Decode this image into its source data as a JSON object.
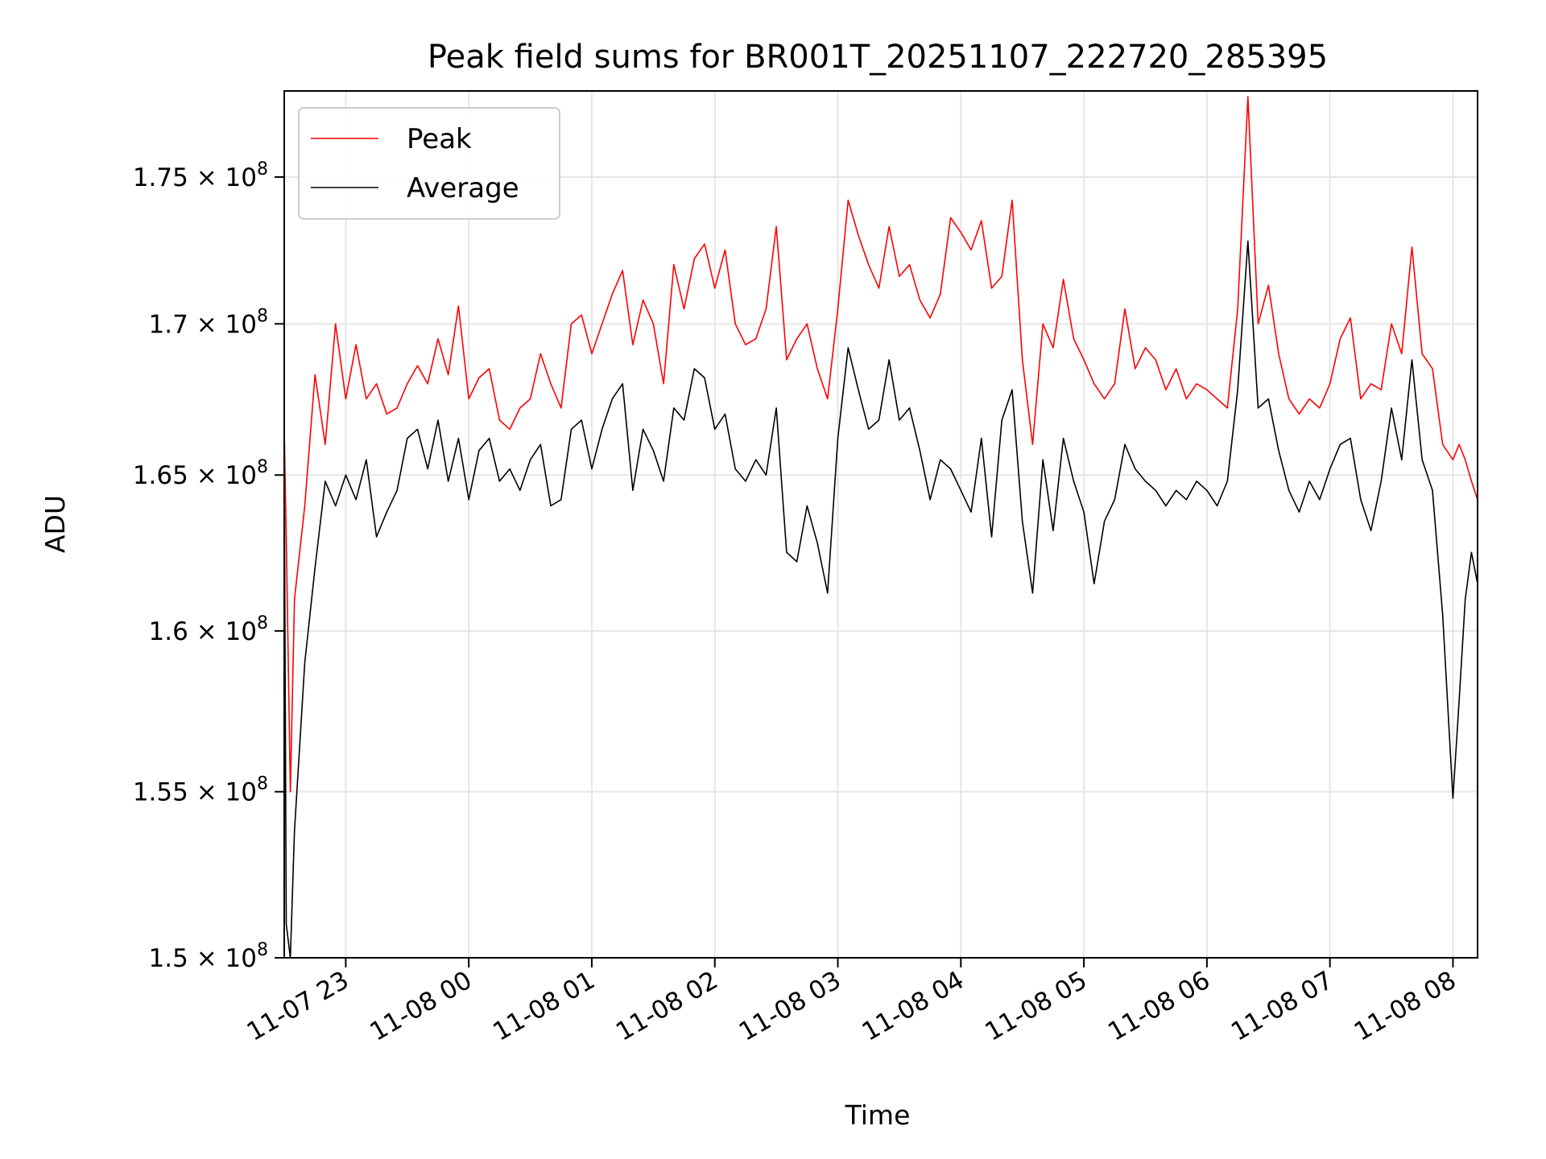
{
  "chart_data": {
    "type": "line",
    "title": "Peak field sums for BR001T_20251107_222720_285395",
    "xlabel": "Time",
    "ylabel": "ADU",
    "xlim": [
      "2025-11-07 22:30",
      "2025-11-08 08:12"
    ],
    "ylim": [
      150000000.0,
      178000000.0
    ],
    "y_scale": "log",
    "grid": true,
    "legend_position": "top-left",
    "x_ticks": [
      {
        "value": "2025-11-07 23:00",
        "label": "11-07 23"
      },
      {
        "value": "2025-11-08 00:00",
        "label": "11-08 00"
      },
      {
        "value": "2025-11-08 01:00",
        "label": "11-08 01"
      },
      {
        "value": "2025-11-08 02:00",
        "label": "11-08 02"
      },
      {
        "value": "2025-11-08 03:00",
        "label": "11-08 03"
      },
      {
        "value": "2025-11-08 04:00",
        "label": "11-08 04"
      },
      {
        "value": "2025-11-08 05:00",
        "label": "11-08 05"
      },
      {
        "value": "2025-11-08 06:00",
        "label": "11-08 06"
      },
      {
        "value": "2025-11-08 07:00",
        "label": "11-08 07"
      },
      {
        "value": "2025-11-08 08:00",
        "label": "11-08 08"
      }
    ],
    "y_ticks": [
      {
        "value": 150000000.0,
        "mantissa": "1.5",
        "exp": "8"
      },
      {
        "value": 155000000.0,
        "mantissa": "1.55",
        "exp": "8"
      },
      {
        "value": 160000000.0,
        "mantissa": "1.6",
        "exp": "8"
      },
      {
        "value": 165000000.0,
        "mantissa": "1.65",
        "exp": "8"
      },
      {
        "value": 170000000.0,
        "mantissa": "1.7",
        "exp": "8"
      },
      {
        "value": 175000000.0,
        "mantissa": "1.75",
        "exp": "8"
      }
    ],
    "series": [
      {
        "name": "Peak",
        "color": "#ff0000",
        "x": [
          "2025-11-07 22:30",
          "2025-11-07 22:31",
          "2025-11-07 22:33",
          "2025-11-07 22:35",
          "2025-11-07 22:40",
          "2025-11-07 22:45",
          "2025-11-07 22:50",
          "2025-11-07 22:55",
          "2025-11-07 23:00",
          "2025-11-07 23:05",
          "2025-11-07 23:10",
          "2025-11-07 23:15",
          "2025-11-07 23:20",
          "2025-11-07 23:25",
          "2025-11-07 23:30",
          "2025-11-07 23:35",
          "2025-11-07 23:40",
          "2025-11-07 23:45",
          "2025-11-07 23:50",
          "2025-11-07 23:55",
          "2025-11-08 00:00",
          "2025-11-08 00:05",
          "2025-11-08 00:10",
          "2025-11-08 00:15",
          "2025-11-08 00:20",
          "2025-11-08 00:25",
          "2025-11-08 00:30",
          "2025-11-08 00:35",
          "2025-11-08 00:40",
          "2025-11-08 00:45",
          "2025-11-08 00:50",
          "2025-11-08 00:55",
          "2025-11-08 01:00",
          "2025-11-08 01:05",
          "2025-11-08 01:10",
          "2025-11-08 01:15",
          "2025-11-08 01:20",
          "2025-11-08 01:25",
          "2025-11-08 01:30",
          "2025-11-08 01:35",
          "2025-11-08 01:40",
          "2025-11-08 01:45",
          "2025-11-08 01:50",
          "2025-11-08 01:55",
          "2025-11-08 02:00",
          "2025-11-08 02:05",
          "2025-11-08 02:10",
          "2025-11-08 02:15",
          "2025-11-08 02:20",
          "2025-11-08 02:25",
          "2025-11-08 02:30",
          "2025-11-08 02:35",
          "2025-11-08 02:40",
          "2025-11-08 02:45",
          "2025-11-08 02:50",
          "2025-11-08 02:55",
          "2025-11-08 03:00",
          "2025-11-08 03:05",
          "2025-11-08 03:10",
          "2025-11-08 03:15",
          "2025-11-08 03:20",
          "2025-11-08 03:25",
          "2025-11-08 03:30",
          "2025-11-08 03:35",
          "2025-11-08 03:40",
          "2025-11-08 03:45",
          "2025-11-08 03:50",
          "2025-11-08 03:55",
          "2025-11-08 04:00",
          "2025-11-08 04:05",
          "2025-11-08 04:10",
          "2025-11-08 04:15",
          "2025-11-08 04:20",
          "2025-11-08 04:25",
          "2025-11-08 04:30",
          "2025-11-08 04:35",
          "2025-11-08 04:40",
          "2025-11-08 04:45",
          "2025-11-08 04:50",
          "2025-11-08 04:55",
          "2025-11-08 05:00",
          "2025-11-08 05:05",
          "2025-11-08 05:10",
          "2025-11-08 05:15",
          "2025-11-08 05:20",
          "2025-11-08 05:25",
          "2025-11-08 05:30",
          "2025-11-08 05:35",
          "2025-11-08 05:40",
          "2025-11-08 05:45",
          "2025-11-08 05:50",
          "2025-11-08 05:55",
          "2025-11-08 06:00",
          "2025-11-08 06:05",
          "2025-11-08 06:10",
          "2025-11-08 06:15",
          "2025-11-08 06:20",
          "2025-11-08 06:25",
          "2025-11-08 06:30",
          "2025-11-08 06:35",
          "2025-11-08 06:40",
          "2025-11-08 06:45",
          "2025-11-08 06:50",
          "2025-11-08 06:55",
          "2025-11-08 07:00",
          "2025-11-08 07:05",
          "2025-11-08 07:10",
          "2025-11-08 07:15",
          "2025-11-08 07:20",
          "2025-11-08 07:25",
          "2025-11-08 07:30",
          "2025-11-08 07:35",
          "2025-11-08 07:40",
          "2025-11-08 07:45",
          "2025-11-08 07:50",
          "2025-11-08 07:55",
          "2025-11-08 08:00",
          "2025-11-08 08:03",
          "2025-11-08 08:06",
          "2025-11-08 08:09",
          "2025-11-08 08:12"
        ],
        "values": [
          166500000.0,
          163000000.0,
          155000000.0,
          161000000.0,
          164000000.0,
          168300000.0,
          166000000.0,
          170000000.0,
          167500000.0,
          169300000.0,
          167500000.0,
          168000000.0,
          167000000.0,
          167200000.0,
          168000000.0,
          168600000.0,
          168000000.0,
          169500000.0,
          168300000.0,
          170600000.0,
          167500000.0,
          168200000.0,
          168500000.0,
          166800000.0,
          166500000.0,
          167200000.0,
          167500000.0,
          169000000.0,
          168000000.0,
          167200000.0,
          170000000.0,
          170300000.0,
          169000000.0,
          170000000.0,
          171000000.0,
          171800000.0,
          169300000.0,
          170800000.0,
          170000000.0,
          168000000.0,
          172000000.0,
          170500000.0,
          172200000.0,
          172700000.0,
          171200000.0,
          172500000.0,
          170000000.0,
          169300000.0,
          169500000.0,
          170500000.0,
          173300000.0,
          168800000.0,
          169500000.0,
          170000000.0,
          168500000.0,
          167500000.0,
          170500000.0,
          174200000.0,
          173000000.0,
          172000000.0,
          171200000.0,
          173300000.0,
          171600000.0,
          172000000.0,
          170800000.0,
          170200000.0,
          171000000.0,
          173600000.0,
          173100000.0,
          172500000.0,
          173500000.0,
          171200000.0,
          171600000.0,
          174200000.0,
          168800000.0,
          166000000.0,
          170000000.0,
          169200000.0,
          171500000.0,
          169500000.0,
          168800000.0,
          168000000.0,
          167500000.0,
          168000000.0,
          170500000.0,
          168500000.0,
          169200000.0,
          168800000.0,
          167800000.0,
          168500000.0,
          167500000.0,
          168000000.0,
          167800000.0,
          167500000.0,
          167200000.0,
          170500000.0,
          177800000.0,
          170000000.0,
          171300000.0,
          169000000.0,
          167500000.0,
          167000000.0,
          167500000.0,
          167200000.0,
          168000000.0,
          169500000.0,
          170200000.0,
          167500000.0,
          168000000.0,
          167800000.0,
          170000000.0,
          169000000.0,
          172600000.0,
          169000000.0,
          168500000.0,
          166000000.0,
          165500000.0,
          166000000.0,
          165500000.0,
          164800000.0,
          164200000.0
        ]
      },
      {
        "name": "Average",
        "color": "#000000",
        "x": [
          "2025-11-07 22:30",
          "2025-11-07 22:31",
          "2025-11-07 22:33",
          "2025-11-07 22:35",
          "2025-11-07 22:40",
          "2025-11-07 22:45",
          "2025-11-07 22:50",
          "2025-11-07 22:55",
          "2025-11-07 23:00",
          "2025-11-07 23:05",
          "2025-11-07 23:10",
          "2025-11-07 23:15",
          "2025-11-07 23:20",
          "2025-11-07 23:25",
          "2025-11-07 23:30",
          "2025-11-07 23:35",
          "2025-11-07 23:40",
          "2025-11-07 23:45",
          "2025-11-07 23:50",
          "2025-11-07 23:55",
          "2025-11-08 00:00",
          "2025-11-08 00:05",
          "2025-11-08 00:10",
          "2025-11-08 00:15",
          "2025-11-08 00:20",
          "2025-11-08 00:25",
          "2025-11-08 00:30",
          "2025-11-08 00:35",
          "2025-11-08 00:40",
          "2025-11-08 00:45",
          "2025-11-08 00:50",
          "2025-11-08 00:55",
          "2025-11-08 01:00",
          "2025-11-08 01:05",
          "2025-11-08 01:10",
          "2025-11-08 01:15",
          "2025-11-08 01:20",
          "2025-11-08 01:25",
          "2025-11-08 01:30",
          "2025-11-08 01:35",
          "2025-11-08 01:40",
          "2025-11-08 01:45",
          "2025-11-08 01:50",
          "2025-11-08 01:55",
          "2025-11-08 02:00",
          "2025-11-08 02:05",
          "2025-11-08 02:10",
          "2025-11-08 02:15",
          "2025-11-08 02:20",
          "2025-11-08 02:25",
          "2025-11-08 02:30",
          "2025-11-08 02:35",
          "2025-11-08 02:40",
          "2025-11-08 02:45",
          "2025-11-08 02:50",
          "2025-11-08 02:55",
          "2025-11-08 03:00",
          "2025-11-08 03:05",
          "2025-11-08 03:10",
          "2025-11-08 03:15",
          "2025-11-08 03:20",
          "2025-11-08 03:25",
          "2025-11-08 03:30",
          "2025-11-08 03:35",
          "2025-11-08 03:40",
          "2025-11-08 03:45",
          "2025-11-08 03:50",
          "2025-11-08 03:55",
          "2025-11-08 04:00",
          "2025-11-08 04:05",
          "2025-11-08 04:10",
          "2025-11-08 04:15",
          "2025-11-08 04:20",
          "2025-11-08 04:25",
          "2025-11-08 04:30",
          "2025-11-08 04:35",
          "2025-11-08 04:40",
          "2025-11-08 04:45",
          "2025-11-08 04:50",
          "2025-11-08 04:55",
          "2025-11-08 05:00",
          "2025-11-08 05:05",
          "2025-11-08 05:10",
          "2025-11-08 05:15",
          "2025-11-08 05:20",
          "2025-11-08 05:25",
          "2025-11-08 05:30",
          "2025-11-08 05:35",
          "2025-11-08 05:40",
          "2025-11-08 05:45",
          "2025-11-08 05:50",
          "2025-11-08 05:55",
          "2025-11-08 06:00",
          "2025-11-08 06:05",
          "2025-11-08 06:10",
          "2025-11-08 06:15",
          "2025-11-08 06:20",
          "2025-11-08 06:25",
          "2025-11-08 06:30",
          "2025-11-08 06:35",
          "2025-11-08 06:40",
          "2025-11-08 06:45",
          "2025-11-08 06:50",
          "2025-11-08 06:55",
          "2025-11-08 07:00",
          "2025-11-08 07:05",
          "2025-11-08 07:10",
          "2025-11-08 07:15",
          "2025-11-08 07:20",
          "2025-11-08 07:25",
          "2025-11-08 07:30",
          "2025-11-08 07:35",
          "2025-11-08 07:40",
          "2025-11-08 07:45",
          "2025-11-08 07:50",
          "2025-11-08 07:55",
          "2025-11-08 08:00",
          "2025-11-08 08:03",
          "2025-11-08 08:06",
          "2025-11-08 08:09",
          "2025-11-08 08:12"
        ],
        "values": [
          165500000.0,
          151000000.0,
          150000000.0,
          153800000.0,
          159000000.0,
          162000000.0,
          164800000.0,
          164000000.0,
          165000000.0,
          164200000.0,
          165500000.0,
          163000000.0,
          163800000.0,
          164500000.0,
          166200000.0,
          166500000.0,
          165200000.0,
          166800000.0,
          164800000.0,
          166200000.0,
          164200000.0,
          165800000.0,
          166200000.0,
          164800000.0,
          165200000.0,
          164500000.0,
          165500000.0,
          166000000.0,
          164000000.0,
          164200000.0,
          166500000.0,
          166800000.0,
          165200000.0,
          166500000.0,
          167500000.0,
          168000000.0,
          164500000.0,
          166500000.0,
          165800000.0,
          164800000.0,
          167200000.0,
          166800000.0,
          168500000.0,
          168200000.0,
          166500000.0,
          167000000.0,
          165200000.0,
          164800000.0,
          165500000.0,
          165000000.0,
          167200000.0,
          162500000.0,
          162200000.0,
          164000000.0,
          162800000.0,
          161200000.0,
          166200000.0,
          169200000.0,
          167800000.0,
          166500000.0,
          166800000.0,
          168800000.0,
          166800000.0,
          167200000.0,
          165800000.0,
          164200000.0,
          165500000.0,
          165200000.0,
          164500000.0,
          163800000.0,
          166200000.0,
          163000000.0,
          166800000.0,
          167800000.0,
          163500000.0,
          161200000.0,
          165500000.0,
          163200000.0,
          166200000.0,
          164800000.0,
          163800000.0,
          161500000.0,
          163500000.0,
          164200000.0,
          166000000.0,
          165200000.0,
          164800000.0,
          164500000.0,
          164000000.0,
          164500000.0,
          164200000.0,
          164800000.0,
          164500000.0,
          164000000.0,
          164800000.0,
          167800000.0,
          172800000.0,
          167200000.0,
          167500000.0,
          165800000.0,
          164500000.0,
          163800000.0,
          164800000.0,
          164200000.0,
          165200000.0,
          166000000.0,
          166200000.0,
          164200000.0,
          163200000.0,
          164800000.0,
          167200000.0,
          165500000.0,
          168800000.0,
          165500000.0,
          164500000.0,
          160500000.0,
          154800000.0,
          157800000.0,
          161000000.0,
          162500000.0,
          161500000.0
        ]
      }
    ]
  }
}
